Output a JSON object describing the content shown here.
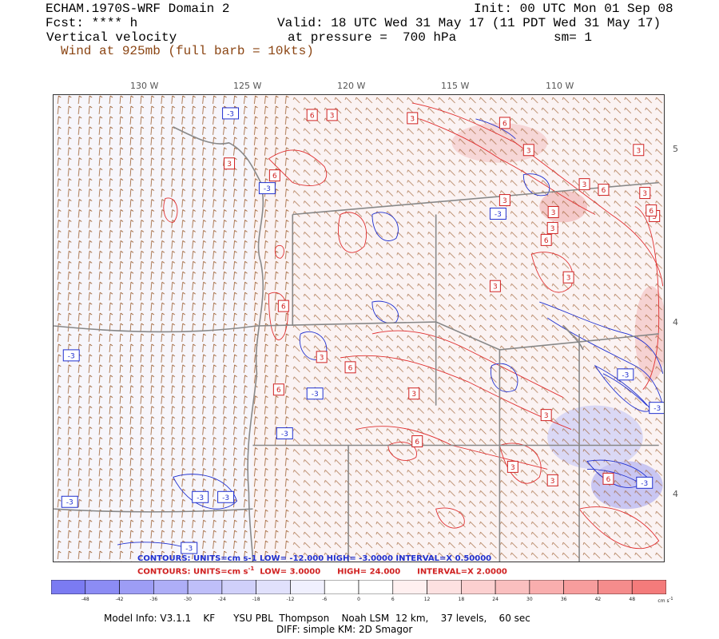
{
  "header": {
    "model": "ECHAM.1970S-WRF Domain 2",
    "init": "Init: 00 UTC Mon 01 Sep 08",
    "fcst": "Fcst: **** h",
    "valid": "Valid: 18 UTC Wed 31 May 17 (11 PDT Wed 31 May 17)",
    "field": "Vertical velocity",
    "pressure": "at pressure =  700 hPa",
    "sm": "sm= 1",
    "wind": "Wind at 925mb (full barb = 10kts)"
  },
  "longitude_labels": [
    "130 W",
    "125 W",
    "120 W",
    "115 W",
    "110 W"
  ],
  "latitude_labels": [
    "5",
    "4",
    "4"
  ],
  "contour_labels_red": [
    "6",
    "3",
    "3",
    "6",
    "3",
    "3",
    "3",
    "6",
    "3",
    "6",
    "3",
    "3",
    "3",
    "6",
    "3",
    "3",
    "6",
    "3",
    "6",
    "6",
    "3",
    "3",
    "6",
    "3",
    "3",
    "6",
    "3",
    "3",
    "6"
  ],
  "contour_labels_blue": [
    "-3",
    "-3",
    "-3",
    "-3",
    "-3",
    "-3",
    "-3",
    "-3",
    "-3",
    "-3",
    "-3",
    "-3",
    "-3"
  ],
  "contour_info": {
    "blue": "CONTOURS:  UNITS=cm s-1  LOW= -12.000     HIGH= -3.0000     INTERVAL=X  0.50000",
    "red_prefix": "CONTOURS:  UNITS=cm s",
    "red_exp": "-1",
    "red_low": "LOW=  3.0000",
    "red_high": "HIGH=  24.000",
    "red_interval": "INTERVAL=X  2.0000"
  },
  "colorbar": {
    "labels": [
      "-48",
      "-42",
      "-36",
      "-30",
      "-24",
      "-18",
      "-12",
      "-6",
      "0",
      "6",
      "12",
      "18",
      "24",
      "30",
      "36",
      "42",
      "48"
    ],
    "units": "cm s",
    "units_exp": "-1",
    "colors": [
      "#7b7bf2",
      "#8c8cf4",
      "#9d9df5",
      "#aeaef7",
      "#bfbff9",
      "#d0d0fa",
      "#e1e1fc",
      "#f0f0fe",
      "#ffffff",
      "#ffffff",
      "#fff0f0",
      "#fde1e1",
      "#fcd0d0",
      "#fabfbf",
      "#f9aeae",
      "#f79d9d",
      "#f58c8c",
      "#f47b7b"
    ]
  },
  "footer": {
    "line1": "Model Info: V3.1.1    KF      YSU PBL  Thompson    Noah LSM  12 km,    37 levels,    60 sec",
    "line2": "DIFF: simple KM: 2D Smagor"
  }
}
